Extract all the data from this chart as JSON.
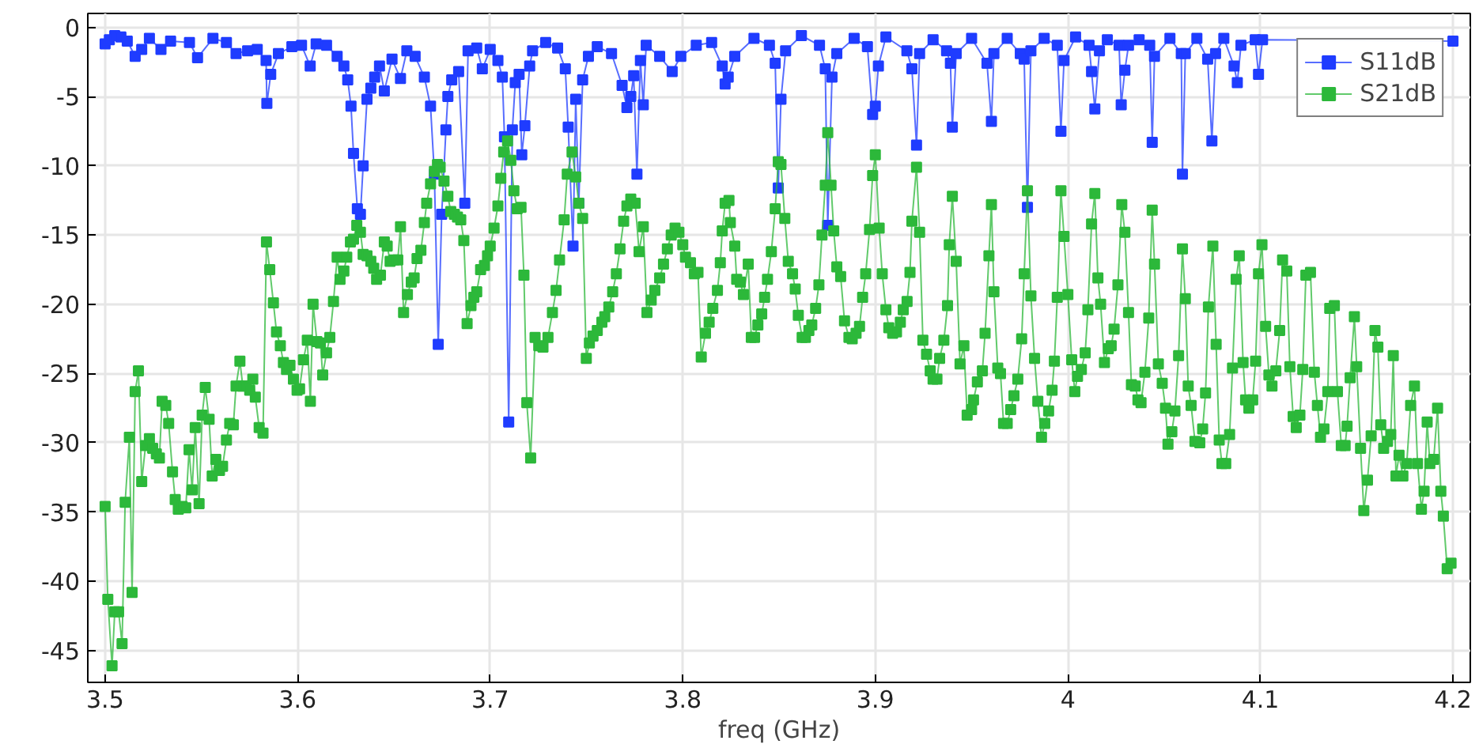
{
  "chart_data": {
    "type": "line",
    "xlabel": "freq (GHz)",
    "xlim": [
      3.491,
      4.209
    ],
    "ylim": [
      -47.3,
      1
    ],
    "xticks": [
      3.5,
      3.6,
      3.7,
      3.8,
      3.9,
      4,
      4.1,
      4.2
    ],
    "yticks": [
      -45,
      -40,
      -35,
      -30,
      -25,
      -20,
      -15,
      -10,
      -5,
      0
    ],
    "grid": true,
    "legend": "top right",
    "marker": "square",
    "line_style": "solid",
    "series": [
      {
        "name": "S11dB",
        "color": "#1f3cff",
        "x": [
          3.5,
          3.5022,
          3.505,
          3.5082,
          3.5115,
          3.5156,
          3.519,
          3.523,
          3.529,
          3.534,
          3.5438,
          3.548,
          3.556,
          3.563,
          3.568,
          3.574,
          3.579,
          3.5836,
          3.584,
          3.586,
          3.59,
          3.597,
          3.602,
          3.6065,
          3.6096,
          3.615,
          3.6205,
          3.624,
          3.626,
          3.6277,
          3.629,
          3.631,
          3.6326,
          3.634,
          3.636,
          3.638,
          3.64,
          3.6425,
          3.645,
          3.649,
          3.6534,
          3.6567,
          3.661,
          3.6658,
          3.669,
          3.671,
          3.673,
          3.6748,
          3.677,
          3.678,
          3.68,
          3.6836,
          3.6868,
          3.6885,
          3.693,
          3.6959,
          3.7,
          3.704,
          3.7063,
          3.7074,
          3.7096,
          3.7115,
          3.713,
          3.715,
          3.7164,
          3.718,
          3.7205,
          3.722,
          3.7288,
          3.735,
          3.739,
          3.7405,
          3.743,
          3.7444,
          3.746,
          3.748,
          3.751,
          3.7556,
          3.763,
          3.7685,
          3.771,
          3.773,
          3.7745,
          3.7762,
          3.778,
          3.7795,
          3.781,
          3.788,
          3.7945,
          3.799,
          3.807,
          3.815,
          3.8205,
          3.822,
          3.8236,
          3.827,
          3.837,
          3.845,
          3.848,
          3.8496,
          3.851,
          3.8534,
          3.8616,
          3.871,
          3.874,
          3.8753,
          3.8775,
          3.88,
          3.889,
          3.8959,
          3.8986,
          3.9,
          3.9016,
          3.9055,
          3.9164,
          3.919,
          3.9214,
          3.923,
          3.93,
          3.937,
          3.939,
          3.94,
          3.942,
          3.95,
          3.958,
          3.9603,
          3.9616,
          3.9685,
          3.9753,
          3.9773,
          3.979,
          3.9808,
          3.9877,
          3.9945,
          3.9964,
          3.998,
          4.004,
          4.011,
          4.0123,
          4.014,
          4.0164,
          4.0205,
          4.0266,
          4.0277,
          4.0296,
          4.0315,
          4.037,
          4.0425,
          4.0438,
          4.045,
          4.053,
          4.0589,
          4.0595,
          4.061,
          4.067,
          4.0726,
          4.0748,
          4.0767,
          4.081,
          4.0863,
          4.088,
          4.0899,
          4.0973,
          4.099,
          4.1011,
          4.2
        ],
        "values": [
          -1.2,
          -0.9,
          -0.6,
          -0.7,
          -1.0,
          -2.1,
          -1.6,
          -0.8,
          -1.6,
          -1.0,
          -1.1,
          -2.2,
          -0.8,
          -1.1,
          -1.9,
          -1.7,
          -1.6,
          -2.4,
          -5.5,
          -3.4,
          -1.9,
          -1.4,
          -1.3,
          -2.8,
          -1.2,
          -1.3,
          -2.1,
          -2.8,
          -3.8,
          -5.7,
          -9.1,
          -13.1,
          -13.5,
          -10.0,
          -5.2,
          -4.4,
          -3.6,
          -2.8,
          -4.6,
          -2.3,
          -3.7,
          -1.7,
          -2.1,
          -3.6,
          -5.7,
          -10.6,
          -22.9,
          -13.5,
          -7.4,
          -5.0,
          -3.8,
          -3.2,
          -12.7,
          -1.7,
          -1.5,
          -3.0,
          -1.6,
          -2.4,
          -3.6,
          -7.9,
          -28.5,
          -7.4,
          -4.0,
          -3.4,
          -9.2,
          -7.1,
          -2.8,
          -1.7,
          -1.1,
          -1.5,
          -3.0,
          -7.2,
          -15.8,
          -5.2,
          -12.7,
          -3.8,
          -2.1,
          -1.4,
          -1.9,
          -4.2,
          -5.8,
          -5.0,
          -3.5,
          -10.6,
          -2.4,
          -5.6,
          -1.3,
          -2.1,
          -3.2,
          -2.1,
          -1.3,
          -1.1,
          -2.8,
          -4.1,
          -3.6,
          -2.1,
          -0.8,
          -1.3,
          -2.6,
          -11.6,
          -5.2,
          -1.7,
          -0.6,
          -1.3,
          -3.0,
          -14.3,
          -3.6,
          -1.9,
          -0.8,
          -1.4,
          -6.3,
          -5.7,
          -2.8,
          -0.7,
          -1.7,
          -3.0,
          -8.5,
          -1.9,
          -0.9,
          -1.7,
          -2.6,
          -7.2,
          -1.9,
          -0.8,
          -2.6,
          -6.8,
          -1.9,
          -0.8,
          -1.9,
          -2.3,
          -13.0,
          -1.7,
          -0.8,
          -1.3,
          -7.5,
          -2.4,
          -0.7,
          -1.3,
          -3.2,
          -5.9,
          -1.7,
          -0.9,
          -1.3,
          -5.6,
          -3.1,
          -1.3,
          -0.9,
          -1.3,
          -8.3,
          -2.1,
          -0.8,
          -1.9,
          -10.6,
          -1.9,
          -0.8,
          -2.3,
          -8.2,
          -1.9,
          -0.8,
          -2.8,
          -4.0,
          -1.3,
          -0.9,
          -3.4,
          -0.9,
          -1.0
        ]
      },
      {
        "name": "S21dB",
        "color": "#2cb83a",
        "x": [
          3.5,
          3.5014,
          3.5036,
          3.505,
          3.507,
          3.5088,
          3.5104,
          3.5126,
          3.514,
          3.5156,
          3.5173,
          3.519,
          3.521,
          3.523,
          3.5247,
          3.5266,
          3.5282,
          3.5296,
          3.5315,
          3.533,
          3.535,
          3.5364,
          3.538,
          3.54,
          3.5419,
          3.5436,
          3.5452,
          3.5468,
          3.5488,
          3.5504,
          3.552,
          3.554,
          3.5556,
          3.5575,
          3.5594,
          3.561,
          3.563,
          3.5647,
          3.5666,
          3.568,
          3.57,
          3.5715,
          3.573,
          3.5751,
          3.5767,
          3.578,
          3.58,
          3.582,
          3.5838,
          3.5855,
          3.5874,
          3.589,
          3.591,
          3.5926,
          3.5942,
          3.596,
          3.5978,
          3.5997,
          3.601,
          3.603,
          3.605,
          3.6066,
          3.608,
          3.61,
          3.6118,
          3.613,
          3.615,
          3.6167,
          3.6186,
          3.6205,
          3.622,
          3.624,
          3.6255,
          3.6274,
          3.629,
          3.6307,
          3.6326,
          3.634,
          3.636,
          3.638,
          3.6395,
          3.641,
          3.643,
          3.645,
          3.6465,
          3.648,
          3.65,
          3.652,
          3.6534,
          3.655,
          3.657,
          3.659,
          3.6605,
          3.662,
          3.664,
          3.6658,
          3.667,
          3.669,
          3.671,
          3.6726,
          3.674,
          3.676,
          3.678,
          3.6795,
          3.6814,
          3.683,
          3.6847,
          3.6863,
          3.688,
          3.69,
          3.6915,
          3.693,
          3.695,
          3.697,
          3.6986,
          3.7,
          3.702,
          3.704,
          3.7055,
          3.707,
          3.709,
          3.7107,
          3.7123,
          3.714,
          3.716,
          3.7175,
          3.719,
          3.721,
          3.7233,
          3.7252,
          3.7274,
          3.73,
          3.7323,
          3.7342,
          3.736,
          3.7384,
          3.74,
          3.7425,
          3.7444,
          3.746,
          3.748,
          3.7499,
          3.7515,
          3.7534,
          3.7556,
          3.758,
          3.7595,
          3.7616,
          3.7636,
          3.7655,
          3.7674,
          3.7693,
          3.771,
          3.773,
          3.7753,
          3.7773,
          3.7795,
          3.7814,
          3.7836,
          3.7855,
          3.788,
          3.79,
          3.792,
          3.794,
          3.796,
          3.798,
          3.8,
          3.8014,
          3.804,
          3.806,
          3.8079,
          3.8096,
          3.8118,
          3.8137,
          3.8156,
          3.818,
          3.8195,
          3.8205,
          3.822,
          3.824,
          3.8247,
          3.827,
          3.828,
          3.8299,
          3.8315,
          3.834,
          3.8356,
          3.8373,
          3.839,
          3.841,
          3.8425,
          3.844,
          3.846,
          3.848,
          3.8496,
          3.851,
          3.853,
          3.8548,
          3.857,
          3.8584,
          3.86,
          3.862,
          3.8637,
          3.8655,
          3.867,
          3.869,
          3.8707,
          3.8723,
          3.874,
          3.8753,
          3.877,
          3.8784,
          3.88,
          3.882,
          3.884,
          3.8863,
          3.888,
          3.89,
          3.8918,
          3.8934,
          3.895,
          3.897,
          3.8986,
          3.9,
          3.902,
          3.9036,
          3.9055,
          3.907,
          3.909,
          3.911,
          3.913,
          3.9145,
          3.9165,
          3.918,
          3.919,
          3.9214,
          3.923,
          3.9247,
          3.9266,
          3.9285,
          3.93,
          3.932,
          3.9334,
          3.9356,
          3.9375,
          3.9384,
          3.94,
          3.942,
          3.944,
          3.946,
          3.9477,
          3.95,
          3.951,
          3.953,
          3.9556,
          3.957,
          3.959,
          3.9603,
          3.9616,
          3.9636,
          3.965,
          3.9666,
          3.9685,
          3.9703,
          3.972,
          3.974,
          3.976,
          3.9773,
          3.979,
          3.9808,
          3.9827,
          3.9844,
          3.9863,
          3.988,
          3.99,
          3.9918,
          3.993,
          3.9945,
          3.9964,
          3.998,
          4.0,
          4.002,
          4.0036,
          4.005,
          4.007,
          4.009,
          4.0104,
          4.0123,
          4.014,
          4.0156,
          4.017,
          4.019,
          4.021,
          4.0225,
          4.024,
          4.026,
          4.028,
          4.0296,
          4.0315,
          4.033,
          4.035,
          4.0364,
          4.038,
          4.04,
          4.042,
          4.0438,
          4.045,
          4.047,
          4.049,
          4.0507,
          4.052,
          4.054,
          4.0556,
          4.0575,
          4.0595,
          4.061,
          4.0625,
          4.064,
          4.066,
          4.0685,
          4.07,
          4.0715,
          4.073,
          4.0753,
          4.077,
          4.0786,
          4.08,
          4.082,
          4.084,
          4.0855,
          4.0874,
          4.089,
          4.091,
          4.0923,
          4.094,
          4.096,
          4.0975,
          4.099,
          4.1008,
          4.1027,
          4.1044,
          4.106,
          4.108,
          4.11,
          4.1115,
          4.1137,
          4.1153,
          4.117,
          4.1186,
          4.1205,
          4.122,
          4.1236,
          4.126,
          4.128,
          4.1296,
          4.1312,
          4.133,
          4.135,
          4.136,
          4.1384,
          4.14,
          4.142,
          4.144,
          4.145,
          4.1466,
          4.1488,
          4.15,
          4.152,
          4.1537,
          4.1556,
          4.1575,
          4.1595,
          4.161,
          4.1625,
          4.164,
          4.166,
          4.1677,
          4.169,
          4.1704,
          4.172,
          4.174,
          4.176,
          4.178,
          4.18,
          4.1816,
          4.1836,
          4.185,
          4.1866,
          4.188,
          4.19,
          4.192,
          4.1937,
          4.195,
          4.197,
          4.199
        ],
        "values": [
          -34.6,
          -41.3,
          -46.1,
          -42.2,
          -42.2,
          -44.5,
          -34.3,
          -29.6,
          -40.8,
          -26.3,
          -24.8,
          -32.8,
          -30.2,
          -29.7,
          -30.4,
          -30.8,
          -31.1,
          -27.0,
          -27.3,
          -28.6,
          -32.1,
          -34.1,
          -34.8,
          -34.6,
          -34.7,
          -30.5,
          -33.4,
          -28.9,
          -34.4,
          -28.0,
          -26.0,
          -28.3,
          -32.4,
          -31.2,
          -32.0,
          -31.7,
          -29.8,
          -28.6,
          -28.7,
          -25.9,
          -24.1,
          -25.9,
          -25.9,
          -26.2,
          -25.4,
          -26.7,
          -28.9,
          -29.3,
          -15.5,
          -17.5,
          -19.9,
          -22.0,
          -23.0,
          -24.2,
          -24.7,
          -24.4,
          -25.4,
          -26.2,
          -26.1,
          -24.0,
          -22.6,
          -27.0,
          -20.0,
          -22.7,
          -22.8,
          -25.1,
          -23.5,
          -22.4,
          -19.8,
          -16.6,
          -18.2,
          -17.6,
          -16.6,
          -15.5,
          -15.3,
          -14.3,
          -14.8,
          -16.4,
          -16.5,
          -16.9,
          -17.4,
          -18.2,
          -17.9,
          -15.5,
          -15.8,
          -16.9,
          -16.8,
          -16.8,
          -14.4,
          -20.6,
          -19.3,
          -18.4,
          -18.1,
          -16.7,
          -16.1,
          -14.1,
          -12.7,
          -11.3,
          -10.4,
          -9.9,
          -10.1,
          -11.1,
          -12.2,
          -13.3,
          -13.5,
          -13.7,
          -13.9,
          -15.4,
          -21.4,
          -20.1,
          -19.5,
          -19.1,
          -17.5,
          -17.2,
          -16.5,
          -15.8,
          -14.5,
          -12.9,
          -10.9,
          -9.0,
          -8.2,
          -9.6,
          -11.8,
          -13.1,
          -13.0,
          -17.9,
          -27.1,
          -31.1,
          -22.4,
          -23.0,
          -23.1,
          -22.4,
          -20.6,
          -19.0,
          -16.8,
          -13.9,
          -10.6,
          -9.0,
          -10.8,
          -12.7,
          -13.8,
          -23.9,
          -22.8,
          -22.3,
          -21.9,
          -21.3,
          -20.9,
          -20.2,
          -19.1,
          -17.8,
          -16.0,
          -14.0,
          -12.9,
          -12.4,
          -12.7,
          -16.2,
          -14.4,
          -20.6,
          -19.7,
          -19.0,
          -18.1,
          -17.1,
          -16.0,
          -15.0,
          -14.5,
          -14.8,
          -15.7,
          -16.6,
          -17.0,
          -17.8,
          -17.7,
          -23.8,
          -22.1,
          -21.3,
          -20.3,
          -19.0,
          -17.0,
          -14.7,
          -12.7,
          -12.5,
          -14.1,
          -15.8,
          -18.2,
          -18.4,
          -19.3,
          -17.1,
          -22.4,
          -22.4,
          -21.5,
          -20.7,
          -19.5,
          -18.2,
          -16.2,
          -13.1,
          -9.7,
          -9.9,
          -13.8,
          -16.9,
          -17.8,
          -18.9,
          -20.8,
          -22.4,
          -22.4,
          -21.9,
          -21.5,
          -20.3,
          -18.6,
          -15.0,
          -11.4,
          -7.6,
          -11.4,
          -14.7,
          -17.3,
          -18.0,
          -21.2,
          -22.4,
          -22.5,
          -22.1,
          -21.6,
          -19.5,
          -17.8,
          -14.6,
          -10.7,
          -9.2,
          -14.5,
          -17.8,
          -20.4,
          -21.7,
          -22.1,
          -22.0,
          -21.3,
          -20.4,
          -19.8,
          -17.7,
          -14.0,
          -10.1,
          -14.8,
          -22.6,
          -23.6,
          -24.8,
          -25.4,
          -25.4,
          -23.9,
          -22.6,
          -20.1,
          -15.7,
          -12.2,
          -16.9,
          -24.3,
          -23.0,
          -28.0,
          -27.6,
          -26.9,
          -25.6,
          -24.8,
          -22.1,
          -16.5,
          -12.8,
          -19.1,
          -24.6,
          -25.0,
          -28.6,
          -28.6,
          -27.6,
          -26.6,
          -25.4,
          -22.5,
          -17.8,
          -11.8,
          -19.4,
          -23.9,
          -27.0,
          -29.6,
          -28.6,
          -27.7,
          -26.2,
          -24.1,
          -19.5,
          -11.8,
          -15.1,
          -19.3,
          -24.0,
          -26.3,
          -25.2,
          -24.7,
          -23.5,
          -20.4,
          -14.2,
          -12.0,
          -18.1,
          -20.0,
          -24.2,
          -23.2,
          -23.0,
          -21.8,
          -18.6,
          -12.8,
          -14.8,
          -20.6,
          -25.8,
          -25.9,
          -26.9,
          -27.1,
          -24.9,
          -21.0,
          -13.2,
          -17.1,
          -24.3,
          -25.7,
          -27.5,
          -30.1,
          -29.2,
          -27.7,
          -23.7,
          -16.0,
          -19.6,
          -25.9,
          -27.3,
          -29.9,
          -30.0,
          -29.0,
          -26.4,
          -20.2,
          -15.8,
          -22.9,
          -29.8,
          -31.5,
          -31.5,
          -29.4,
          -24.6,
          -18.2,
          -16.5,
          -24.2,
          -26.9,
          -27.5,
          -26.9,
          -24.1,
          -17.8,
          -15.7,
          -21.6,
          -25.1,
          -25.9,
          -24.8,
          -21.9,
          -16.8,
          -17.6,
          -24.5,
          -28.1,
          -28.9,
          -28.0,
          -24.7,
          -17.9,
          -17.7,
          -24.9,
          -27.3,
          -29.6,
          -29.0,
          -26.3,
          -20.3,
          -20.1,
          -26.3,
          -30.2,
          -30.2,
          -28.8,
          -25.3,
          -20.9,
          -24.5,
          -30.4,
          -34.9,
          -32.7,
          -29.5,
          -21.9,
          -23.1,
          -28.7,
          -30.4,
          -29.9,
          -29.4,
          -23.7,
          -32.4,
          -30.9,
          -32.4,
          -31.5,
          -27.3,
          -25.9,
          -31.5,
          -34.8,
          -33.5,
          -28.5,
          -31.5,
          -31.2,
          -27.5,
          -33.5,
          -35.3,
          -39.1,
          -38.7
        ]
      }
    ]
  }
}
